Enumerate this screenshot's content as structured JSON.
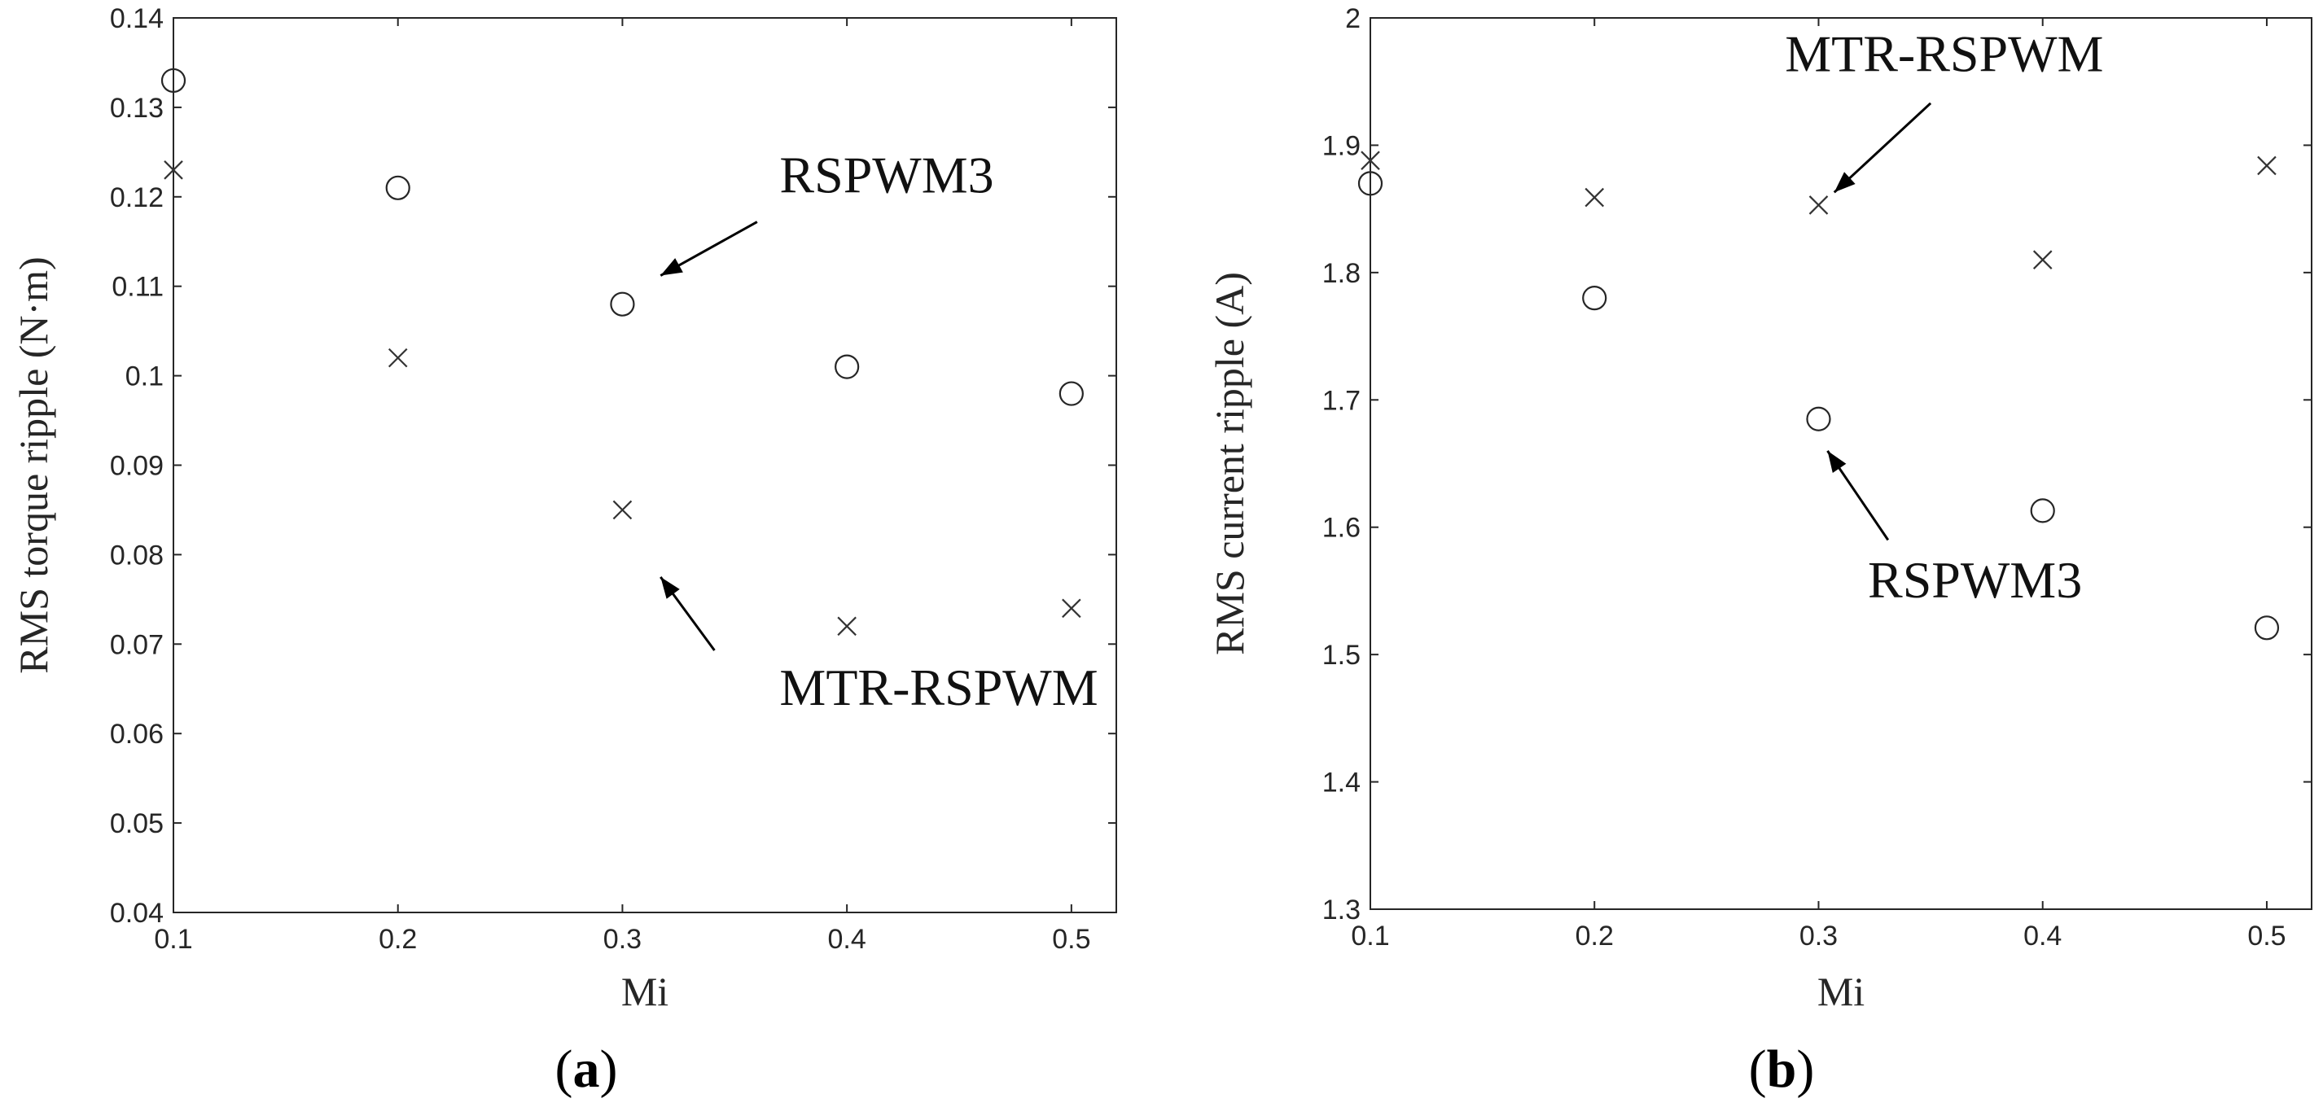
{
  "chart_data": [
    {
      "type": "scatter",
      "panel_label": "a",
      "title": "",
      "xlabel": "Mi",
      "ylabel": "RMS torque ripple (N·m)",
      "xlim": [
        0.1,
        0.52
      ],
      "ylim": [
        0.04,
        0.14
      ],
      "x_ticks": [
        "0.1",
        "0.2",
        "0.3",
        "0.4",
        "0.5"
      ],
      "y_ticks": [
        "0.04",
        "0.05",
        "0.06",
        "0.07",
        "0.08",
        "0.09",
        "0.1",
        "0.11",
        "0.12",
        "0.13",
        "0.14"
      ],
      "grid": true,
      "legend": "none",
      "series": [
        {
          "name": "RSPWM3",
          "marker": "circle",
          "x": [
            0.1,
            0.2,
            0.3,
            0.4,
            0.5
          ],
          "y": [
            0.133,
            0.121,
            0.108,
            0.101,
            0.098
          ]
        },
        {
          "name": "MTR-RSPWM",
          "marker": "cross",
          "x": [
            0.1,
            0.2,
            0.3,
            0.4,
            0.5
          ],
          "y": [
            0.123,
            0.102,
            0.085,
            0.072,
            0.074
          ]
        }
      ],
      "annotations": [
        {
          "text": "RSPWM3",
          "text_at": [
            0.37,
            0.1205
          ],
          "arrow_from": [
            0.36,
            0.1172
          ],
          "arrow_to": [
            0.317,
            0.1112
          ]
        },
        {
          "text": "MTR-RSPWM",
          "text_at": [
            0.37,
            0.0632
          ],
          "arrow_from": [
            0.341,
            0.0693
          ],
          "arrow_to": [
            0.317,
            0.0775
          ]
        }
      ]
    },
    {
      "type": "scatter",
      "panel_label": "b",
      "title": "",
      "xlabel": "Mi",
      "ylabel": "RMS current ripple (A)",
      "xlim": [
        0.1,
        0.52
      ],
      "ylim": [
        1.3,
        2.0
      ],
      "x_ticks": [
        "0.1",
        "0.2",
        "0.3",
        "0.4",
        "0.5"
      ],
      "y_ticks": [
        "1.3",
        "1.4",
        "1.5",
        "1.6",
        "1.7",
        "1.8",
        "1.9",
        "2"
      ],
      "grid": true,
      "legend": "none",
      "series": [
        {
          "name": "RSPWM3",
          "marker": "circle",
          "x": [
            0.1,
            0.2,
            0.3,
            0.4,
            0.5
          ],
          "y": [
            1.87,
            1.78,
            1.685,
            1.613,
            1.521
          ]
        },
        {
          "name": "MTR-RSPWM",
          "marker": "cross",
          "x": [
            0.1,
            0.2,
            0.3,
            0.4,
            0.5
          ],
          "y": [
            1.888,
            1.859,
            1.853,
            1.81,
            1.884
          ]
        }
      ],
      "annotations": [
        {
          "text": "MTR-RSPWM",
          "text_at": [
            0.285,
            1.958
          ],
          "arrow_from": [
            0.35,
            1.933
          ],
          "arrow_to": [
            0.307,
            1.863
          ]
        },
        {
          "text": "RSPWM3",
          "text_at": [
            0.322,
            1.545
          ],
          "arrow_from": [
            0.331,
            1.59
          ],
          "arrow_to": [
            0.304,
            1.66
          ]
        }
      ]
    }
  ]
}
